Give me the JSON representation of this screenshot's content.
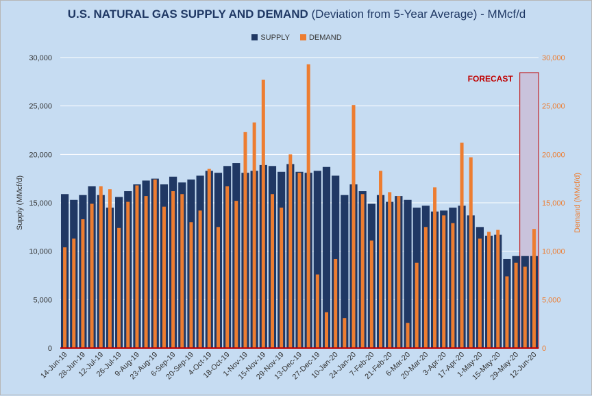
{
  "title_bold": "U.S. NATURAL GAS SUPPLY AND DEMAND",
  "title_rest": " (Deviation from 5-Year Average) - MMcf/d",
  "legend": {
    "supply": "SUPPLY",
    "demand": "DEMAND"
  },
  "forecast_label": "FORECAST",
  "colors": {
    "supply": "#203864",
    "demand": "#ed7d31",
    "forecast_border": "#c00000",
    "forecast_fill": "#c9c3dc",
    "axis_line": "#c00000",
    "background": "#c6dcf2"
  },
  "chart_data": {
    "type": "bar",
    "title": "U.S. NATURAL GAS SUPPLY AND DEMAND (Deviation from 5-Year Average) - MMcf/d",
    "ylabel": "Supply (MMcf/d)",
    "y2label": "Demand (MMcf/d)",
    "ylim": [
      0,
      30000
    ],
    "y2lim": [
      0,
      30000
    ],
    "yticks": [
      "0",
      "5,000",
      "10,000",
      "15,000",
      "20,000",
      "25,000",
      "30,000"
    ],
    "grid": true,
    "legend_position": "top",
    "categories": [
      "14-Jun-19",
      "21-Jun-19",
      "28-Jun-19",
      "5-Jul-19",
      "12-Jul-19",
      "19-Jul-19",
      "26-Jul-19",
      "2-Aug-19",
      "9-Aug-19",
      "16-Aug-19",
      "23-Aug-19",
      "30-Aug-19",
      "6-Sep-19",
      "13-Sep-19",
      "20-Sep-19",
      "27-Sep-19",
      "4-Oct-19",
      "11-Oct-19",
      "18-Oct-19",
      "25-Oct-19",
      "1-Nov-19",
      "8-Nov-19",
      "15-Nov-19",
      "22-Nov-19",
      "29-Nov-19",
      "6-Dec-19",
      "13-Dec-19",
      "20-Dec-19",
      "27-Dec-19",
      "3-Jan-20",
      "10-Jan-20",
      "17-Jan-20",
      "24-Jan-20",
      "31-Jan-20",
      "7-Feb-20",
      "14-Feb-20",
      "21-Feb-20",
      "28-Feb-20",
      "6-Mar-20",
      "13-Mar-20",
      "20-Mar-20",
      "27-Mar-20",
      "3-Apr-20",
      "10-Apr-20",
      "17-Apr-20",
      "24-Apr-20",
      "1-May-20",
      "8-May-20",
      "15-May-20",
      "22-May-20",
      "29-May-20",
      "5-Jun-20",
      "12-Jun-20"
    ],
    "x_tick_labels": [
      "14-Jun-19",
      "28-Jun-19",
      "12-Jul-19",
      "26-Jul-19",
      "9-Aug-19",
      "23-Aug-19",
      "6-Sep-19",
      "20-Sep-19",
      "4-Oct-19",
      "18-Oct-19",
      "1-Nov-19",
      "15-Nov-19",
      "29-Nov-19",
      "13-Dec-19",
      "27-Dec-19",
      "10-Jan-20",
      "24-Jan-20",
      "7-Feb-20",
      "21-Feb-20",
      "6-Mar-20",
      "20-Mar-20",
      "3-Apr-20",
      "17-Apr-20",
      "1-May-20",
      "15-May-20",
      "29-May-20",
      "12-Jun-20"
    ],
    "series": [
      {
        "name": "SUPPLY",
        "axis": "left",
        "values": [
          15900,
          15300,
          15800,
          16700,
          15800,
          14500,
          15600,
          16200,
          16900,
          17300,
          17500,
          16900,
          17700,
          17100,
          17400,
          17800,
          18300,
          18100,
          18800,
          19100,
          18100,
          18300,
          18900,
          18800,
          18200,
          19000,
          18200,
          18100,
          18300,
          18700,
          17800,
          15800,
          16900,
          16200,
          14900,
          15800,
          15100,
          15700,
          15300,
          14500,
          14700,
          14100,
          14200,
          14500,
          14700,
          13700,
          12500,
          11600,
          11700,
          9200,
          9500,
          9500,
          9500
        ]
      },
      {
        "name": "DEMAND",
        "axis": "right",
        "values": [
          10400,
          11300,
          13300,
          14900,
          16700,
          16400,
          12400,
          15100,
          16800,
          15700,
          17400,
          14600,
          16200,
          15900,
          13000,
          14200,
          18500,
          12500,
          16700,
          15200,
          22300,
          23300,
          27700,
          15900,
          14500,
          20000,
          18100,
          29300,
          7600,
          3700,
          9200,
          3100,
          25100,
          15900,
          11100,
          18300,
          16100,
          15700,
          2600,
          8800,
          12500,
          16600,
          13700,
          12900,
          21200,
          19700,
          11300,
          12000,
          12200,
          7400,
          8800,
          8400,
          12300
        ]
      }
    ],
    "forecast_categories": [
      "5-Jun-20",
      "12-Jun-20"
    ]
  }
}
